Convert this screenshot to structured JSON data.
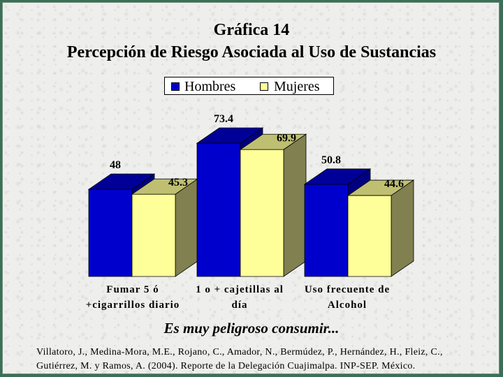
{
  "colors": {
    "hombres_front": "#0000cc",
    "hombres_top": "#000099",
    "hombres_side": "#000080",
    "mujeres_front": "#ffff99",
    "mujeres_top": "#bfbf72",
    "mujeres_side": "#808050"
  },
  "chart_data": {
    "type": "bar",
    "title": "Gráfica 14",
    "subtitle": "Percepción de Riesgo Asociada al Uso de Sustancias",
    "categories": [
      [
        "Fumar 5 ó",
        "+cigarrillos diario"
      ],
      [
        "1 o + cajetillas al",
        "día"
      ],
      [
        "Uso frecuente de",
        "Alcohol"
      ]
    ],
    "series": [
      {
        "name": "Hombres",
        "values": [
          48,
          73.4,
          50.8
        ],
        "labels": [
          "48",
          "73.4",
          "50.8"
        ]
      },
      {
        "name": "Mujeres",
        "values": [
          45.3,
          69.9,
          44.6
        ],
        "labels": [
          "45.3",
          "69.9",
          "44.6"
        ]
      }
    ],
    "legend": "top-center",
    "grid": false,
    "bar_style": "3d"
  },
  "caption": "Es muy peligroso consumir...",
  "citation": "Villatoro, J., Medina-Mora, M.E., Rojano, C., Amador, N., Bermúdez, P., Hernández, H., Fleiz, C., Gutiérrez, M. y Ramos, A. (2004). Reporte de la Delegación Cuajimalpa. INP-SEP. México."
}
